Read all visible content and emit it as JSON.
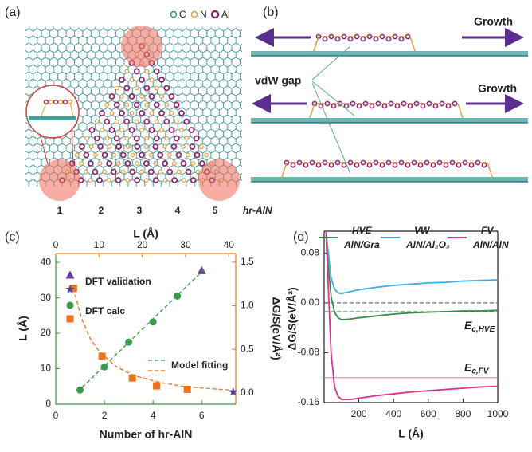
{
  "panel_a": {
    "label": "(a)",
    "legend": [
      "C",
      "N",
      "Al"
    ],
    "sites": [
      "1",
      "2",
      "3",
      "4",
      "5"
    ],
    "structure": "hr-AlN"
  },
  "panel_b": {
    "label": "(b)",
    "growth": [
      "Growth",
      "Growth"
    ],
    "gap": "vdW gap"
  },
  "chart_data": [
    {
      "type": "scatter",
      "panel": "(c)",
      "xlabel": "Number of hr-AlN",
      "x2label": "L (Å)",
      "ylabel": "L (Å)",
      "y2label": "ΔG/S(eV/Å²)",
      "xlim": [
        0,
        7.4
      ],
      "xticks": [
        0,
        2,
        4,
        6
      ],
      "x2lim": [
        0,
        41.6
      ],
      "x2ticks": [
        0,
        10,
        20,
        30,
        40
      ],
      "ylim": [
        0,
        42.5
      ],
      "yticks": [
        0,
        10,
        20,
        30,
        40
      ],
      "y2lim": [
        -0.13,
        1.6
      ],
      "y2ticks": [
        {
          "value": 0,
          "label": "0.0"
        },
        0.5,
        {
          "value": 1,
          "label": "1.0"
        },
        1.5
      ],
      "axis_colors": {
        "x": "#3a9a4a",
        "x2": "#e8731c",
        "y": "#3a9a4a",
        "y2": "#e8731c"
      },
      "series": [
        {
          "name": "DFT validation",
          "marker": "triangle",
          "color": "#6a3d9a",
          "x": [
            6
          ],
          "values": [
            37.7
          ]
        },
        {
          "name": "DFT validation",
          "marker": "star",
          "color": "#5b3fa0",
          "xaxis": "x2",
          "axis": "y2",
          "x": [
            41
          ],
          "values": [
            0.01
          ]
        },
        {
          "name": "DFT calc",
          "marker": "circle",
          "color": "#3a9a4a",
          "x": [
            1,
            2,
            3,
            4,
            5
          ],
          "values": [
            4,
            10.5,
            17.5,
            23.2,
            30.5
          ]
        },
        {
          "name": "DFT calc",
          "marker": "square",
          "color": "#e8731c",
          "xaxis": "x2",
          "axis": "y2",
          "x": [
            4.1,
            10.7,
            17.7,
            23.3,
            30.4
          ],
          "values": [
            1.2,
            0.42,
            0.17,
            0.08,
            0.04
          ]
        },
        {
          "name": "Model fitting",
          "line": "dashed",
          "color": "#3a9a4a",
          "x": [
            0.9,
            6.1
          ],
          "values": [
            3.5,
            38
          ]
        },
        {
          "name": "Model fitting",
          "line": "dashed",
          "color": "#e8731c",
          "xaxis": "x2",
          "axis": "y2",
          "x": [
            4.1,
            6,
            8,
            10,
            14,
            18,
            24,
            30,
            38,
            41
          ],
          "values": [
            1.2,
            0.85,
            0.62,
            0.48,
            0.3,
            0.2,
            0.12,
            0.07,
            0.04,
            0.03
          ]
        }
      ]
    },
    {
      "type": "line",
      "panel": "(d)",
      "xlabel": "L (Å)",
      "ylabel": "ΔG/S(eV/Å²)",
      "xlim": [
        0,
        1000
      ],
      "xticks": [
        200,
        400,
        600,
        800,
        1000
      ],
      "ylim": [
        -0.16,
        0.115
      ],
      "yticks": [
        0.08,
        {
          "value": 0,
          "label": "0.00"
        },
        -0.08,
        -0.16
      ],
      "x": [
        10,
        20,
        40,
        60,
        80,
        100,
        150,
        200,
        300,
        400,
        500,
        600,
        700,
        800,
        900,
        1000
      ],
      "series": [
        {
          "name": "HVE",
          "subtitle": "AlN/Gra",
          "color": "#3a8a4a",
          "values": [
            0.12,
            0.07,
            0.01,
            -0.015,
            -0.024,
            -0.027,
            -0.026,
            -0.024,
            -0.021,
            -0.018,
            -0.016,
            -0.015,
            -0.014,
            -0.013,
            -0.013,
            -0.012
          ]
        },
        {
          "name": "VW",
          "subtitle": "AlN/Al₂O₃",
          "color": "#3aaee0",
          "values": [
            0.12,
            0.09,
            0.04,
            0.022,
            0.016,
            0.015,
            0.018,
            0.021,
            0.025,
            0.028,
            0.03,
            0.032,
            0.033,
            0.035,
            0.036,
            0.037
          ]
        },
        {
          "name": "FV",
          "subtitle": "AlN/AlN",
          "color": "#d8358a",
          "values": [
            0.12,
            0.05,
            -0.08,
            -0.135,
            -0.15,
            -0.155,
            -0.155,
            -0.153,
            -0.149,
            -0.146,
            -0.143,
            -0.141,
            -0.139,
            -0.137,
            -0.135,
            -0.134
          ]
        }
      ],
      "reference_lines": [
        {
          "value": 0,
          "color": "#555555",
          "dash": true
        },
        {
          "value": -0.014,
          "color": "#3a8a4a",
          "dash": true,
          "label": "E",
          "label_sub": "c,HVE"
        },
        {
          "value": -0.12,
          "color": "#e070a8",
          "dash": false,
          "label": "E",
          "label_sub": "c,FV"
        }
      ]
    }
  ]
}
